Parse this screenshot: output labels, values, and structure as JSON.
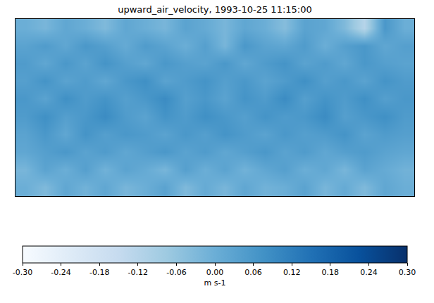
{
  "chart_data": {
    "type": "heatmap",
    "title": "upward_air_velocity, 1993-10-25 11:15:00",
    "tick_labels": false,
    "cells": [
      [
        0.0,
        -0.02,
        0.02,
        0.0,
        -0.03,
        0.02,
        0.0,
        -0.02,
        0.03,
        0.01,
        -0.02,
        0.02,
        0.0,
        -0.04,
        0.03,
        0.02,
        -0.03,
        -0.12,
        0.06,
        0.0
      ],
      [
        0.03,
        0.05,
        0.02,
        0.06,
        0.04,
        0.01,
        0.05,
        0.03,
        0.0,
        0.04,
        -0.02,
        0.06,
        0.03,
        0.02,
        0.05,
        0.0,
        0.04,
        0.06,
        0.02,
        0.04
      ],
      [
        0.05,
        0.02,
        0.06,
        0.03,
        0.07,
        0.04,
        0.02,
        0.06,
        0.04,
        0.03,
        0.06,
        0.02,
        0.05,
        0.07,
        0.03,
        0.05,
        0.02,
        0.06,
        0.04,
        0.03
      ],
      [
        0.04,
        0.07,
        0.03,
        0.05,
        0.02,
        0.06,
        0.08,
        0.03,
        0.05,
        0.07,
        0.04,
        0.06,
        0.03,
        0.05,
        0.08,
        0.04,
        0.06,
        0.03,
        0.07,
        0.05
      ],
      [
        0.06,
        0.03,
        0.08,
        0.05,
        0.07,
        0.04,
        0.06,
        0.09,
        0.04,
        0.06,
        0.03,
        0.07,
        0.05,
        0.09,
        0.04,
        0.07,
        0.05,
        0.08,
        0.04,
        0.06
      ],
      [
        0.05,
        0.08,
        0.04,
        0.06,
        0.09,
        0.05,
        0.03,
        0.07,
        0.05,
        0.08,
        0.06,
        0.04,
        0.07,
        0.05,
        0.06,
        0.09,
        0.04,
        0.06,
        0.08,
        0.05
      ],
      [
        0.03,
        0.06,
        0.02,
        0.07,
        0.04,
        0.06,
        0.05,
        0.03,
        0.06,
        0.04,
        0.07,
        0.05,
        0.03,
        0.06,
        0.04,
        0.05,
        0.07,
        0.03,
        0.05,
        0.04
      ],
      [
        0.02,
        0.04,
        0.06,
        0.03,
        0.05,
        0.02,
        0.04,
        0.06,
        0.03,
        0.05,
        0.02,
        0.04,
        0.06,
        0.03,
        0.05,
        0.02,
        0.04,
        0.05,
        0.03,
        0.02
      ],
      [
        -0.02,
        0.03,
        0.0,
        0.04,
        -0.01,
        0.03,
        0.01,
        -0.02,
        0.04,
        0.0,
        0.03,
        -0.01,
        0.02,
        0.04,
        0.0,
        0.02,
        -0.02,
        0.03,
        0.01,
        -0.01
      ],
      [
        0.0,
        -0.03,
        0.02,
        -0.01,
        0.02,
        -0.02,
        0.0,
        0.03,
        -0.03,
        0.01,
        -0.02,
        0.02,
        -0.01,
        0.0,
        0.03,
        -0.02,
        0.01,
        -0.03,
        0.02,
        0.0
      ]
    ],
    "colorbar": {
      "range": [
        -0.3,
        0.3
      ],
      "label": "m s-1",
      "ticks": [
        {
          "value": -0.3,
          "label": "-0.30"
        },
        {
          "value": -0.24,
          "label": "-0.24"
        },
        {
          "value": -0.18,
          "label": "-0.18"
        },
        {
          "value": -0.12,
          "label": "-0.12"
        },
        {
          "value": -0.06,
          "label": "-0.06"
        },
        {
          "value": 0,
          "label": "0.00"
        },
        {
          "value": 0.06,
          "label": "0.06"
        },
        {
          "value": 0.12,
          "label": "0.12"
        },
        {
          "value": 0.18,
          "label": "0.18"
        },
        {
          "value": 0.24,
          "label": "0.24"
        },
        {
          "value": 0.3,
          "label": "0.30"
        }
      ]
    }
  }
}
